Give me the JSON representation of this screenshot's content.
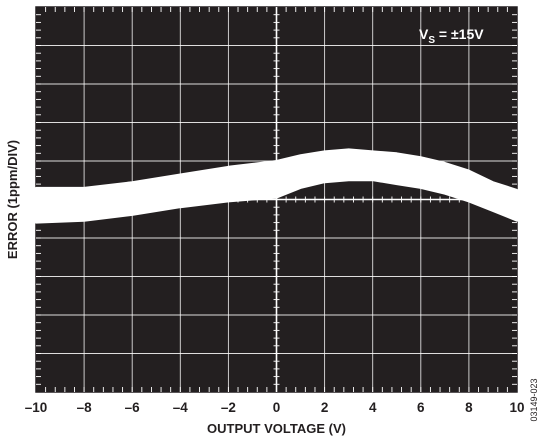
{
  "chart_data": {
    "type": "area",
    "title": "",
    "xlabel": "OUTPUT VOLTAGE (V)",
    "ylabel": "ERROR (1ppm/DIV)",
    "xlim": [
      -10,
      10
    ],
    "ylim": [
      -5,
      5
    ],
    "x_ticks": [
      -10,
      -8,
      -6,
      -4,
      -2,
      0,
      2,
      4,
      6,
      8,
      10
    ],
    "x_tick_labels": [
      "–10",
      "–8",
      "–6",
      "–4",
      "–2",
      "0",
      "2",
      "4",
      "6",
      "8",
      "10"
    ],
    "y_ticks_labeled": false,
    "grid": true,
    "background": "#231f20",
    "trace_color": "#ffffff",
    "annotation": {
      "prefix": "V",
      "subscript": "S",
      "suffix": " = ±15V",
      "position": "top-right"
    },
    "figure_id": "03149-023",
    "series": [
      {
        "x": [
          -10,
          -8,
          -6,
          -4,
          -2,
          0,
          1,
          2,
          3,
          4,
          5,
          6,
          7,
          8,
          9,
          10
        ],
        "upper": [
          0.3,
          0.3,
          0.45,
          0.65,
          0.85,
          1.0,
          1.15,
          1.25,
          1.3,
          1.25,
          1.2,
          1.1,
          0.95,
          0.75,
          0.45,
          0.25
        ],
        "lower": [
          -0.6,
          -0.55,
          -0.4,
          -0.2,
          -0.05,
          0.05,
          0.3,
          0.45,
          0.5,
          0.5,
          0.4,
          0.3,
          0.15,
          -0.05,
          -0.3,
          -0.55
        ]
      }
    ]
  }
}
